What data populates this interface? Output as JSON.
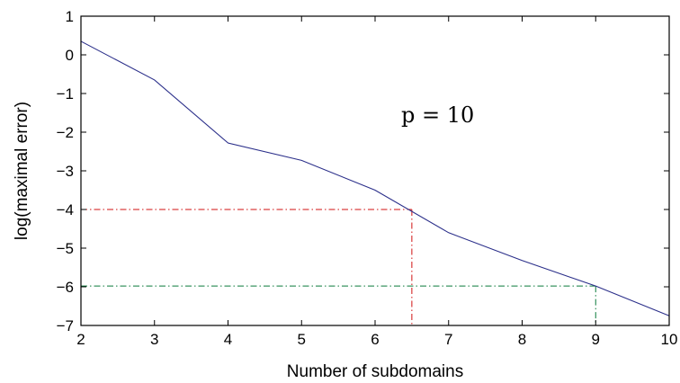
{
  "chart_data": {
    "type": "line",
    "xlabel": "Number of subdomains",
    "ylabel": "log(maximal error)",
    "xlim": [
      2,
      10
    ],
    "ylim": [
      -7,
      1
    ],
    "x_ticks": [
      2,
      3,
      4,
      5,
      6,
      7,
      8,
      9,
      10
    ],
    "x_tick_labels": [
      "2",
      "3",
      "4",
      "5",
      "6",
      "7",
      "8",
      "9",
      "10"
    ],
    "y_ticks": [
      1,
      0,
      -1,
      -2,
      -3,
      -4,
      -5,
      -6,
      -7
    ],
    "y_tick_labels": [
      "1",
      "0",
      "−1",
      "−2",
      "−3",
      "−4",
      "−5",
      "−6",
      "−7"
    ],
    "grid": false,
    "series": [
      {
        "color": "#2b2f8a",
        "x": [
          2,
          3,
          4,
          5,
          6,
          7,
          8,
          9,
          10
        ],
        "y": [
          0.35,
          -0.65,
          -2.28,
          -2.73,
          -3.5,
          -4.6,
          -5.32,
          -5.98,
          -6.75
        ]
      }
    ],
    "reference_lines": [
      {
        "color": "#d01010",
        "x": 6.5,
        "y": -4.0
      },
      {
        "color": "#0a7a3a",
        "x": 9.0,
        "y": -5.98
      }
    ],
    "annotation": "p = 10"
  }
}
